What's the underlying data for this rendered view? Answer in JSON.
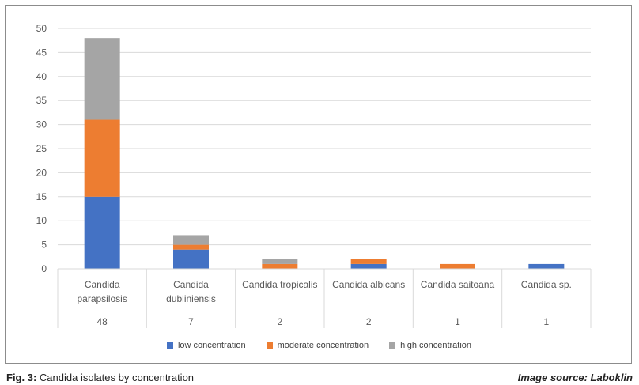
{
  "chart_data": {
    "type": "bar",
    "stacked": true,
    "categories": [
      "Candida parapsilosis",
      "Candida dubliniensis",
      "Candida tropicalis",
      "Candida albicans",
      "Candida saitoana",
      "Candida sp."
    ],
    "category_lines": [
      [
        "Candida",
        "parapsilosis"
      ],
      [
        "Candida",
        "dubliniensis"
      ],
      [
        "Candida tropicalis"
      ],
      [
        "Candida albicans"
      ],
      [
        "Candida saitoana"
      ],
      [
        "Candida sp."
      ]
    ],
    "totals": [
      "48",
      "7",
      "2",
      "2",
      "1",
      "1"
    ],
    "series": [
      {
        "name": "low concentration",
        "color": "#4472C4",
        "values": [
          15,
          4,
          0,
          1,
          0,
          1
        ]
      },
      {
        "name": "moderate concentration",
        "color": "#ED7D31",
        "values": [
          16,
          1,
          1,
          1,
          1,
          0
        ]
      },
      {
        "name": "high concentration",
        "color": "#A5A5A5",
        "values": [
          17,
          2,
          1,
          0,
          0,
          0
        ]
      }
    ],
    "ylim": [
      0,
      50
    ],
    "yticks": [
      0,
      5,
      10,
      15,
      20,
      25,
      30,
      35,
      40,
      45,
      50
    ],
    "grid": true,
    "legend": "bottom"
  },
  "caption": {
    "label": "Fig. 3:",
    "text": "Candida isolates by concentration"
  },
  "source": {
    "label": "Image source:",
    "text": "Laboklin"
  }
}
